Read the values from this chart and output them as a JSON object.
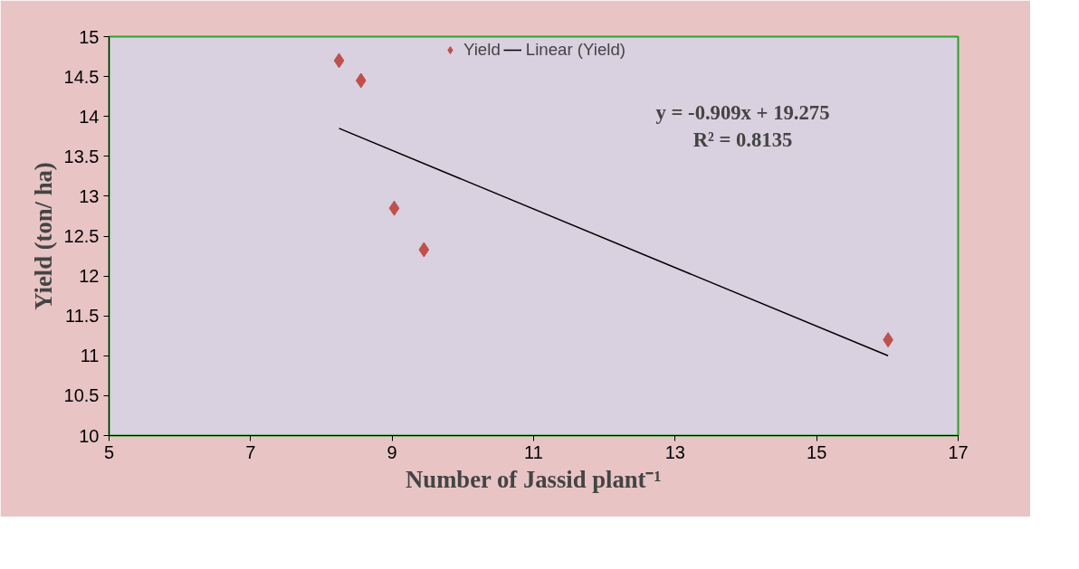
{
  "chart_data": {
    "type": "scatter",
    "xlabel": "Number of Jassid plant⁻¹",
    "ylabel": "Yield (ton/ ha)",
    "series": [
      {
        "name": "Yield",
        "type": "scatter",
        "color": "#c0504d",
        "marker": "diamond",
        "x": [
          8.25,
          8.56,
          9.03,
          9.45,
          16.01
        ],
        "values": [
          14.7,
          14.45,
          12.85,
          12.33,
          11.2
        ]
      },
      {
        "name": "Linear (Yield)",
        "type": "line",
        "color": "#000000",
        "marker": "none",
        "x": [
          8.25,
          16.01
        ],
        "values": [
          13.85,
          11.0
        ]
      }
    ],
    "annotations": [
      "y = -0.909x + 19.275",
      "R² = 0.8135"
    ],
    "xlim": [
      5,
      17
    ],
    "xticks": [
      5,
      7,
      9,
      11,
      13,
      15,
      17
    ],
    "ylim": [
      10,
      15
    ],
    "yticks": [
      10,
      10.5,
      11,
      11.5,
      12,
      12.5,
      13,
      13.5,
      14,
      14.5,
      15
    ],
    "grid": false,
    "legend": "top"
  }
}
